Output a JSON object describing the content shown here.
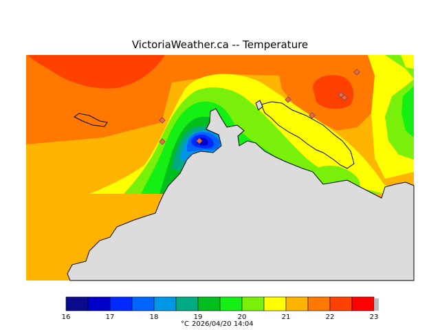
{
  "title": "VictoriaWeather.ca -- Temperature",
  "colorbar": {
    "ticks": [
      "16",
      "17",
      "18",
      "19",
      "20",
      "21",
      "22",
      "23"
    ],
    "colors": [
      "#0a0a8c",
      "#0000c8",
      "#0028ff",
      "#0064ff",
      "#0096e6",
      "#00aa82",
      "#00be1e",
      "#14f014",
      "#78f00a",
      "#ffff00",
      "#ffb400",
      "#ff7800",
      "#ff4100",
      "#ff0000"
    ]
  },
  "footer": {
    "unit": "°C",
    "timestamp": "2026/04/20 14:04"
  },
  "map": {
    "land_color": "#dcdcdc",
    "coast_color": "#000000",
    "station_color": "#ff6040",
    "stations": 8
  }
}
